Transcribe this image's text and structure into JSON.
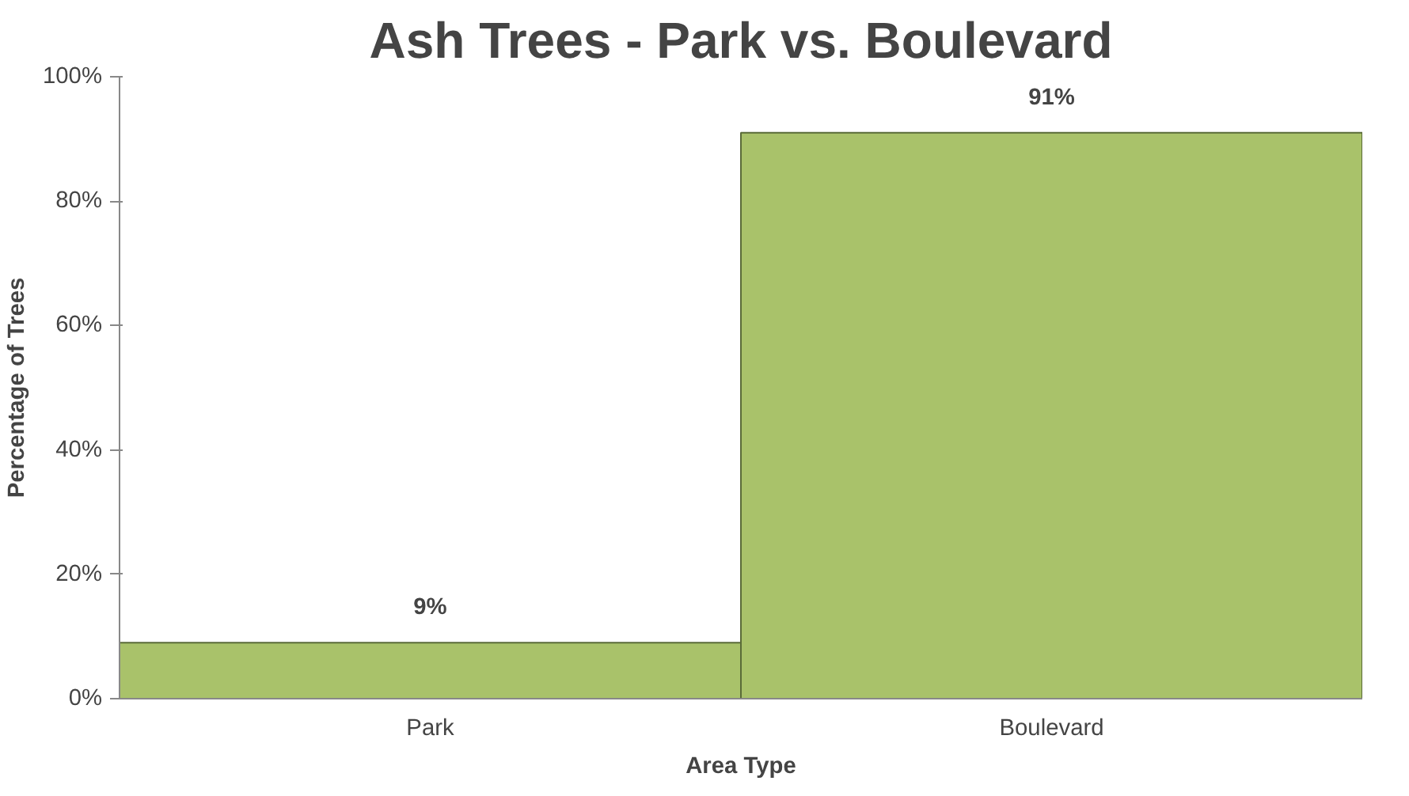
{
  "chart_data": {
    "type": "bar",
    "title": "Ash Trees - Park vs. Boulevard",
    "xlabel": "Area Type",
    "ylabel": "Percentage of Trees",
    "categories": [
      "Park",
      "Boulevard"
    ],
    "values": [
      9,
      91
    ],
    "color": "#a9c26a",
    "value_labels": [
      "9%",
      "91%"
    ],
    "ylim": [
      0,
      100
    ],
    "yticks": [
      {
        "value": 0,
        "label": "0%"
      },
      {
        "value": 20,
        "label": "20%"
      },
      {
        "value": 40,
        "label": "40%"
      },
      {
        "value": 60,
        "label": "60%"
      },
      {
        "value": 80,
        "label": "80%"
      },
      {
        "value": 100,
        "label": "100%"
      }
    ],
    "grid": false
  }
}
